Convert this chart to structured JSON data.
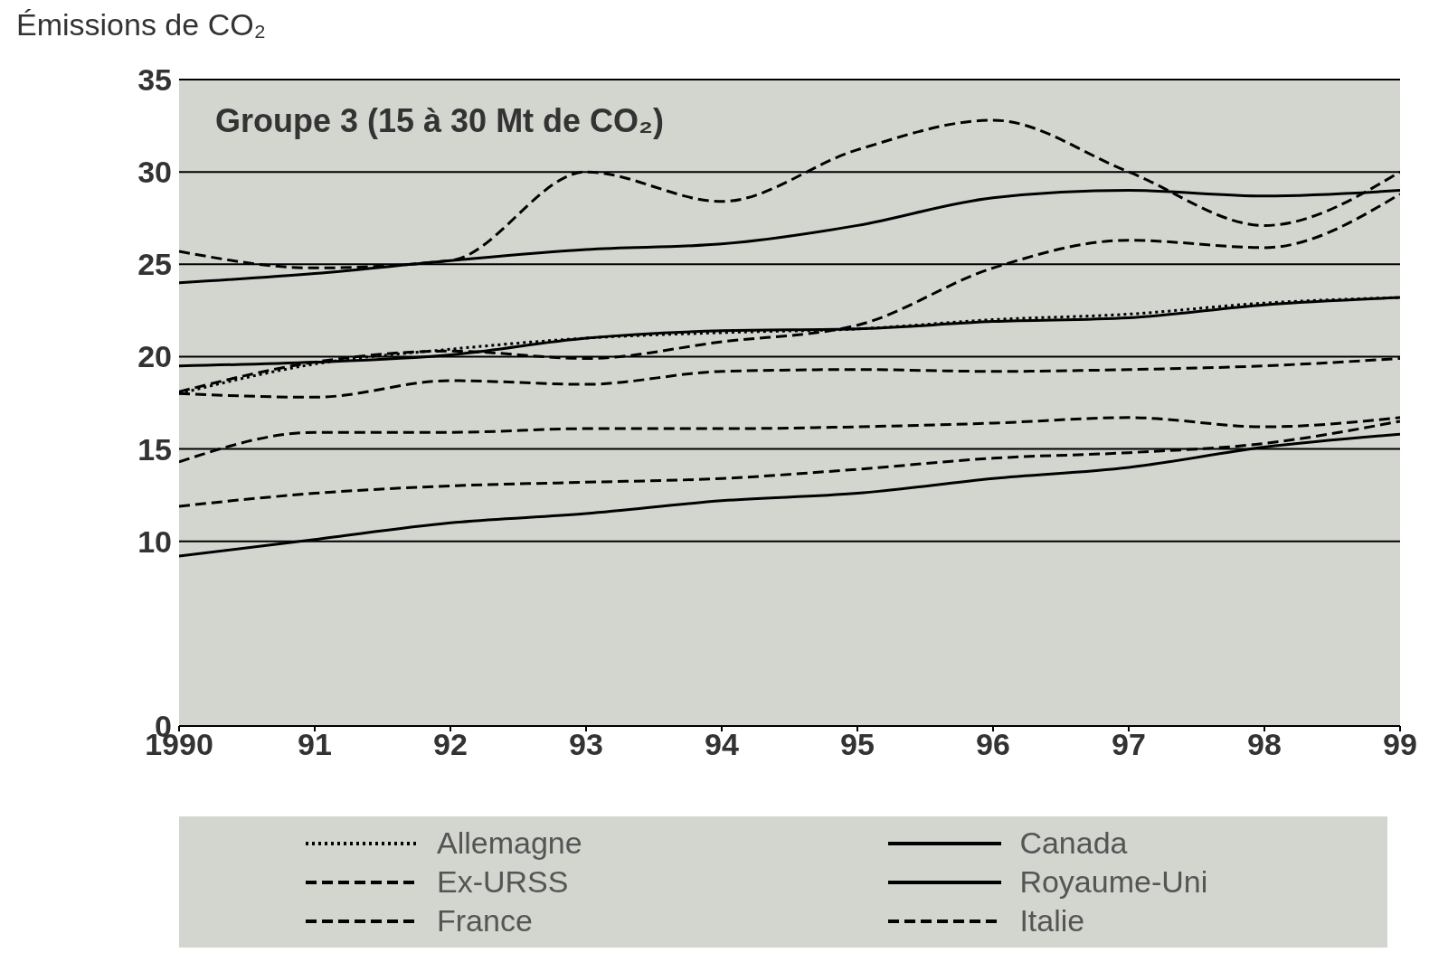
{
  "chart_data": {
    "type": "line",
    "ylabel": "Émissions de CO₂",
    "annotations": [
      "Groupe 3 (15 à 30 Mt de CO₂)"
    ],
    "x": [
      1990,
      1991,
      1992,
      1993,
      1994,
      1995,
      1996,
      1997,
      1998,
      1999
    ],
    "xlim": [
      1990,
      1999
    ],
    "xticks": [
      {
        "value": 1990,
        "label": "1990"
      },
      {
        "value": 1991,
        "label": "91"
      },
      {
        "value": 1992,
        "label": "92"
      },
      {
        "value": 1993,
        "label": "93"
      },
      {
        "value": 1994,
        "label": "94"
      },
      {
        "value": 1995,
        "label": "95"
      },
      {
        "value": 1996,
        "label": "96"
      },
      {
        "value": 1997,
        "label": "97"
      },
      {
        "value": 1998,
        "label": "98"
      },
      {
        "value": 1999,
        "label": "99"
      }
    ],
    "ylim": [
      0,
      35
    ],
    "yticks": [
      0,
      10,
      15,
      20,
      25,
      30,
      35
    ],
    "grid": "y",
    "legend": "bottom",
    "marker": "none",
    "series": [
      {
        "name": "Allemagne",
        "color": "#000000",
        "line_style": "dotted",
        "values": [
          18.0,
          19.6,
          20.4,
          21.0,
          21.3,
          21.5,
          22.0,
          22.3,
          22.9,
          23.2
        ]
      },
      {
        "name": "Ex-URSS",
        "color": "#000000",
        "line_style": "dashed",
        "values": [
          25.7,
          24.8,
          25.2,
          30.0,
          28.4,
          31.2,
          32.8,
          30.0,
          27.1,
          30.0
        ]
      },
      {
        "name": "France",
        "color": "#000000",
        "line_style": "dashed",
        "values": [
          14.3,
          15.9,
          15.9,
          16.1,
          16.1,
          16.2,
          16.4,
          16.7,
          16.2,
          16.7
        ]
      },
      {
        "name": "Canada",
        "color": "#000000",
        "line_style": "solid",
        "values": [
          24.0,
          24.5,
          25.2,
          25.8,
          26.1,
          27.1,
          28.6,
          29.0,
          28.7,
          29.0
        ]
      },
      {
        "name": "Royaume-Uni",
        "color": "#000000",
        "line_style": "solid",
        "values": [
          19.5,
          19.7,
          20.1,
          21.0,
          21.4,
          21.5,
          21.9,
          22.1,
          22.8,
          23.2
        ]
      },
      {
        "name": "Italie",
        "color": "#000000",
        "line_style": "dashed",
        "values": [
          18.0,
          17.8,
          18.7,
          18.5,
          19.2,
          19.3,
          19.2,
          19.3,
          19.5,
          19.9
        ]
      },
      {
        "color": "#000000",
        "line_style": "dashed",
        "values": [
          18.1,
          19.7,
          20.3,
          19.9,
          20.8,
          21.7,
          24.8,
          26.3,
          25.9,
          28.8
        ]
      },
      {
        "color": "#000000",
        "line_style": "dashed",
        "values": [
          11.9,
          12.6,
          13.0,
          13.2,
          13.4,
          13.9,
          14.5,
          14.8,
          15.3,
          16.5
        ]
      },
      {
        "color": "#000000",
        "line_style": "solid",
        "values": [
          9.2,
          10.1,
          11.0,
          11.5,
          12.2,
          12.6,
          13.4,
          14.0,
          15.1,
          15.8
        ]
      }
    ]
  }
}
